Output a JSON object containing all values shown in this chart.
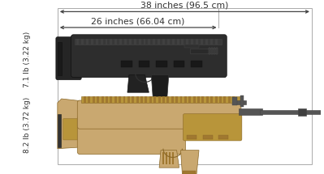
{
  "background_color": "#ffffff",
  "top_label": "38 inches (96.5 cm)",
  "mid_label": "26 inches (66.04 cm)",
  "weight_top": "7.1 lb (3.22 kg)",
  "weight_bottom": "8.2 lb (3.72 kg)",
  "fig_width": 3.99,
  "fig_height": 2.15,
  "dpi": 100,
  "arrow_color": "#444444",
  "text_color": "#333333",
  "border_color": "#aaaaaa",
  "font_size_labels": 7.8,
  "font_size_weight": 6.5
}
